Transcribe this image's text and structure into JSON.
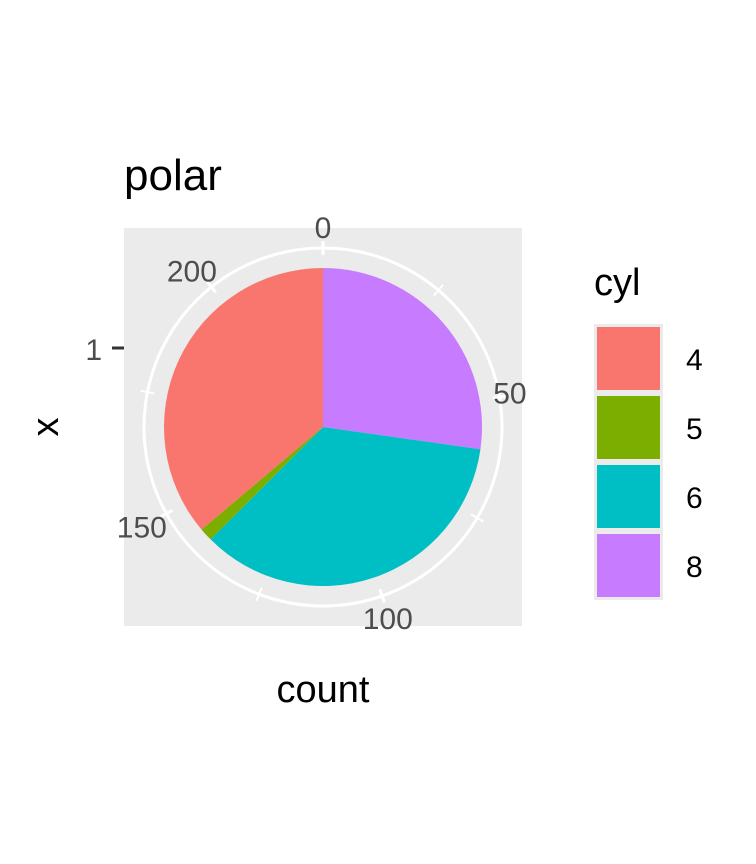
{
  "chart_data": {
    "type": "pie",
    "title": "polar",
    "xlabel": "count",
    "ylabel": "x",
    "y_tick_labels": [
      "1"
    ],
    "angle_ticks": [
      0,
      50,
      100,
      150,
      200
    ],
    "total": 224,
    "slices_order": [
      "8",
      "6",
      "5",
      "4"
    ],
    "categories": [
      "4",
      "5",
      "6",
      "8"
    ],
    "values": [
      81,
      3,
      79,
      61
    ],
    "colors": {
      "4": "#F8766D",
      "5": "#7CAE00",
      "6": "#00BFC4",
      "8": "#C77CFF"
    },
    "legend_title": "cyl",
    "legend_position": "right",
    "panel_background": "#EBEBEB",
    "grid": true
  }
}
